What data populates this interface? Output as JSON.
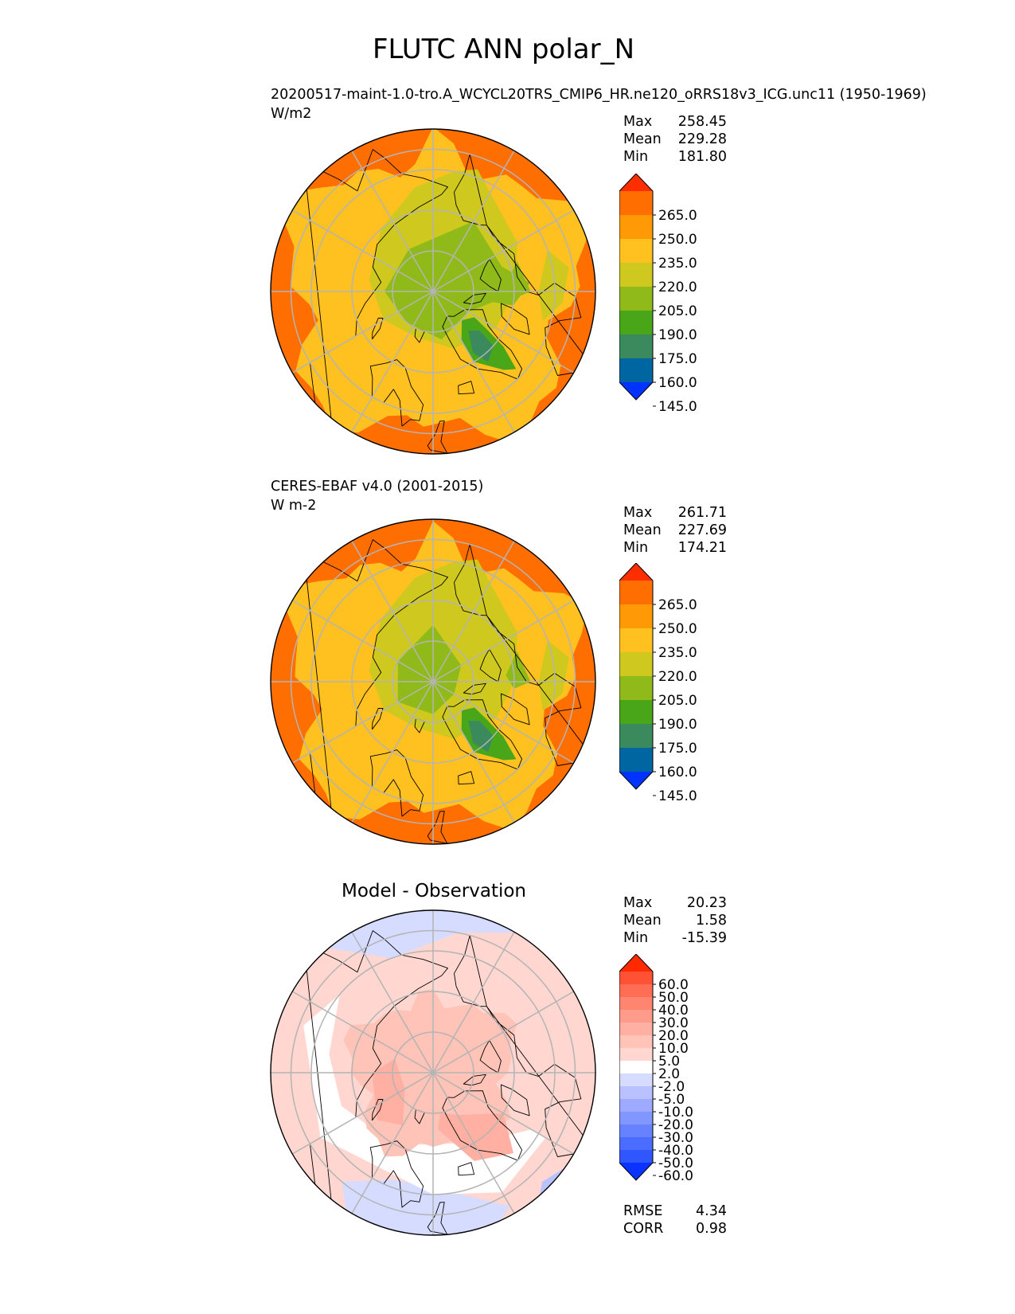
{
  "figure": {
    "title": "FLUTC ANN polar_N"
  },
  "panels": [
    {
      "title_line1": "20200517-maint-1.0-tro.A_WCYCL20TRS_CMIP6_HR.ne120_oRRS18v3_ICG.unc11 (1950-1969)",
      "title_line2": "W/m2",
      "stats": [
        {
          "label": "Max",
          "value": "258.45"
        },
        {
          "label": "Mean",
          "value": "229.28"
        },
        {
          "label": "Min",
          "value": "181.80"
        }
      ],
      "colorbar_labels": [
        "265.0",
        "250.0",
        "235.0",
        "220.0",
        "205.0",
        "190.0",
        "175.0",
        "160.0",
        "145.0"
      ]
    },
    {
      "title_line1": "CERES-EBAF v4.0 (2001-2015)",
      "title_line2": "W m-2",
      "stats": [
        {
          "label": "Max",
          "value": "261.71"
        },
        {
          "label": "Mean",
          "value": "227.69"
        },
        {
          "label": "Min",
          "value": "174.21"
        }
      ],
      "colorbar_labels": [
        "265.0",
        "250.0",
        "235.0",
        "220.0",
        "205.0",
        "190.0",
        "175.0",
        "160.0",
        "145.0"
      ]
    },
    {
      "title": "Model - Observation",
      "stats": [
        {
          "label": "Max",
          "value": "20.23"
        },
        {
          "label": "Mean",
          "value": "1.58"
        },
        {
          "label": "Min",
          "value": "-15.39"
        }
      ],
      "colorbar_labels": [
        "60.0",
        "50.0",
        "40.0",
        "30.0",
        "20.0",
        "10.0",
        "5.0",
        "2.0",
        "-2.0",
        "-5.0",
        "-10.0",
        "-20.0",
        "-30.0",
        "-40.0",
        "-50.0",
        "-60.0"
      ],
      "metrics": [
        {
          "label": "RMSE",
          "value": "4.34"
        },
        {
          "label": "CORR",
          "value": "0.98"
        }
      ]
    }
  ],
  "colors": {
    "field_scale": [
      "#0033ff",
      "#0066a1",
      "#3a8a5e",
      "#4aa619",
      "#8fba19",
      "#cfc91f",
      "#ffc11f",
      "#ff9905",
      "#ff6e00",
      "#ff2e00"
    ],
    "diff_scale": [
      "#0a33ff",
      "#2f56ff",
      "#4a6cff",
      "#6682ff",
      "#8196ff",
      "#9daaff",
      "#b9c1ff",
      "#d6dcff",
      "#ffffff",
      "#ffd7d0",
      "#ffc3b7",
      "#ffb0a2",
      "#ff9b8a",
      "#ff8571",
      "#ff6d55",
      "#ff5133",
      "#ff2a00"
    ],
    "grid": "#b4b4b4",
    "coast": "#000000"
  },
  "chart_data": [
    {
      "type": "heatmap",
      "projection": "north-polar-stereographic",
      "title": "20200517-maint-1.0-tro.A_WCYCL20TRS_CMIP6_HR.ne120_oRRS18v3_ICG.unc11 (1950-1969)",
      "units": "W/m2",
      "colorbar_levels": [
        145,
        160,
        175,
        190,
        205,
        220,
        235,
        250,
        265
      ],
      "colorbar_extend": "both",
      "stats": {
        "max": 258.45,
        "mean": 229.28,
        "min": 181.8
      }
    },
    {
      "type": "heatmap",
      "projection": "north-polar-stereographic",
      "title": "CERES-EBAF v4.0 (2001-2015)",
      "units": "W m-2",
      "colorbar_levels": [
        145,
        160,
        175,
        190,
        205,
        220,
        235,
        250,
        265
      ],
      "colorbar_extend": "both",
      "stats": {
        "max": 261.71,
        "mean": 227.69,
        "min": 174.21
      }
    },
    {
      "type": "heatmap",
      "projection": "north-polar-stereographic",
      "title": "Model - Observation",
      "colorbar_levels": [
        -60,
        -50,
        -40,
        -30,
        -20,
        -10,
        -5,
        -2,
        2,
        5,
        10,
        20,
        30,
        40,
        50,
        60
      ],
      "colorbar_extend": "both",
      "stats": {
        "max": 20.23,
        "mean": 1.58,
        "min": -15.39
      },
      "metrics": {
        "rmse": 4.34,
        "corr": 0.98
      }
    }
  ]
}
